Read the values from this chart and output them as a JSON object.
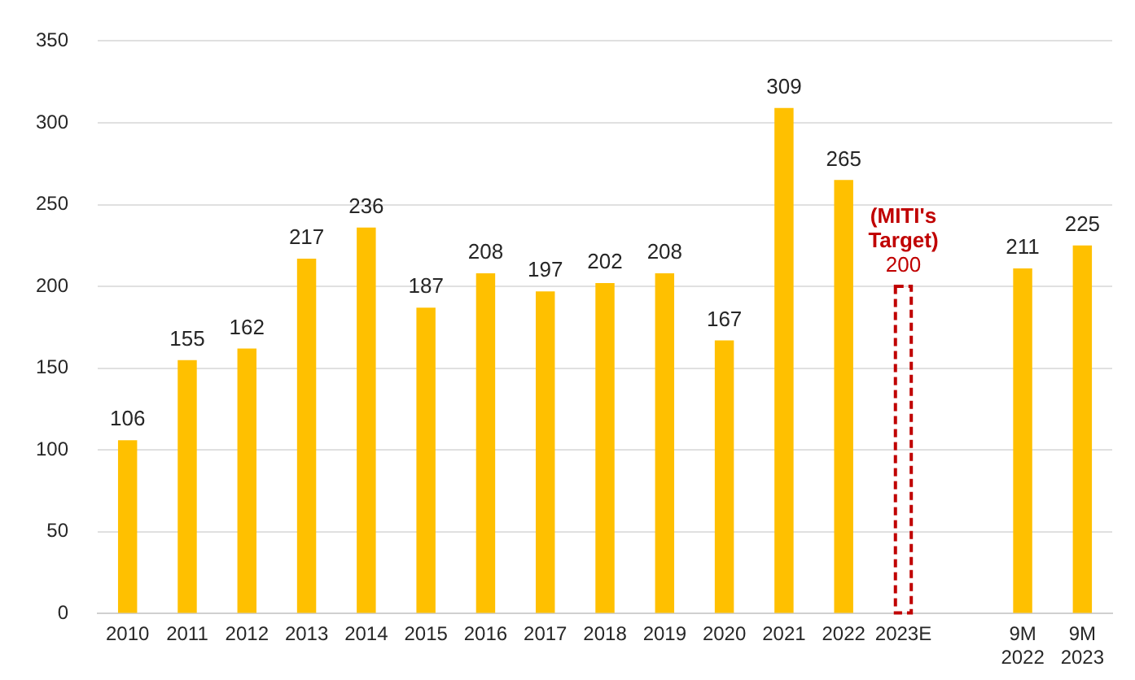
{
  "chart_data": {
    "type": "bar",
    "categories": [
      "2010",
      "2011",
      "2012",
      "2013",
      "2014",
      "2015",
      "2016",
      "2017",
      "2018",
      "2019",
      "2020",
      "2021",
      "2022",
      "2023E",
      null,
      "9M 2022",
      "9M 2023"
    ],
    "series": [
      {
        "color": "#ffc000",
        "values": [
          106,
          155,
          162,
          217,
          236,
          187,
          208,
          197,
          202,
          208,
          167,
          309,
          265,
          null,
          null,
          211,
          225
        ]
      },
      {
        "color": "#c00000",
        "line_style": "dashed",
        "values": [
          null,
          null,
          null,
          null,
          null,
          null,
          null,
          null,
          null,
          null,
          null,
          null,
          null,
          200,
          null,
          null,
          null
        ]
      }
    ],
    "ylim": [
      0,
      350
    ],
    "yticks": [
      0,
      50,
      100,
      150,
      200,
      250,
      300,
      350
    ],
    "grid": "y",
    "legend": false,
    "data_labels": true,
    "annotations": [
      {
        "text": "(MITI's Target)",
        "x": "2023E",
        "y": 200
      }
    ]
  }
}
